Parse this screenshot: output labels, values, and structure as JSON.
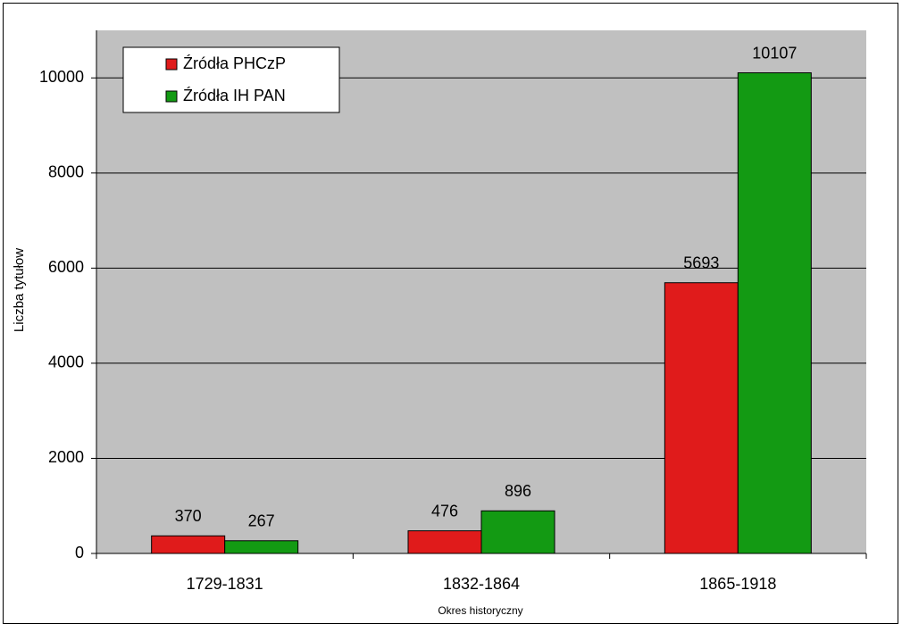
{
  "chart_data": {
    "type": "bar",
    "x_label": "Okres historyczny",
    "y_label": "Liczba tytułow",
    "categories": [
      "1729-1831",
      "1832-1864",
      "1865-1918"
    ],
    "series": [
      {
        "name": "Źródła PHCzP",
        "color": "#e01b1b",
        "values": [
          370,
          476,
          5693
        ]
      },
      {
        "name": "Źródła IH PAN",
        "color": "#139a13",
        "values": [
          267,
          896,
          10107
        ]
      }
    ],
    "ylim": [
      0,
      11000
    ],
    "yticks": [
      0,
      2000,
      4000,
      6000,
      8000,
      10000
    ],
    "grid": true,
    "legend": "top-left"
  }
}
